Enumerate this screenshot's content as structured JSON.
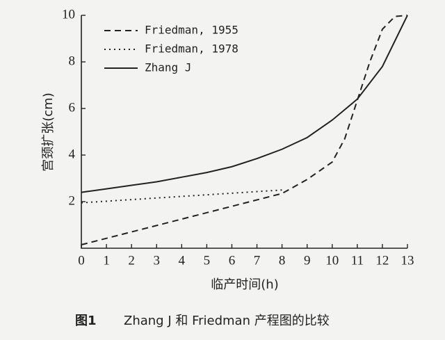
{
  "chart_data": {
    "type": "line",
    "y_label": "宫颈扩张(cm)",
    "x_label": "临产时间(h)",
    "figure_label": "图1",
    "caption": "Zhang J 和 Friedman 产程图的比较",
    "xlim": [
      0,
      13
    ],
    "ylim": [
      0,
      10
    ],
    "xticks": [
      0,
      1,
      2,
      3,
      4,
      5,
      6,
      7,
      8,
      9,
      10,
      11,
      12,
      13
    ],
    "yticks": [
      2,
      4,
      6,
      8,
      10
    ],
    "legend": "upper left",
    "series": [
      {
        "name": "Friedman, 1955",
        "color": "#222222",
        "dash": "dashed",
        "x": [
          0,
          8,
          9,
          10,
          10.5,
          11,
          11.5,
          12,
          12.5,
          13
        ],
        "values": [
          0.15,
          2.35,
          2.95,
          3.7,
          4.7,
          6.35,
          8.0,
          9.4,
          9.95,
          10
        ]
      },
      {
        "name": "Friedman, 1978",
        "color": "#222222",
        "dash": "dotted",
        "x": [
          0,
          8
        ],
        "values": [
          1.95,
          2.5
        ]
      },
      {
        "name": "Zhang J",
        "color": "#222222",
        "dash": "solid",
        "x": [
          0,
          1,
          2,
          3,
          4,
          5,
          6,
          7,
          8,
          9,
          10,
          11,
          12,
          13
        ],
        "values": [
          2.4,
          2.55,
          2.7,
          2.85,
          3.05,
          3.25,
          3.5,
          3.85,
          4.25,
          4.75,
          5.5,
          6.4,
          7.8,
          10
        ]
      }
    ]
  }
}
